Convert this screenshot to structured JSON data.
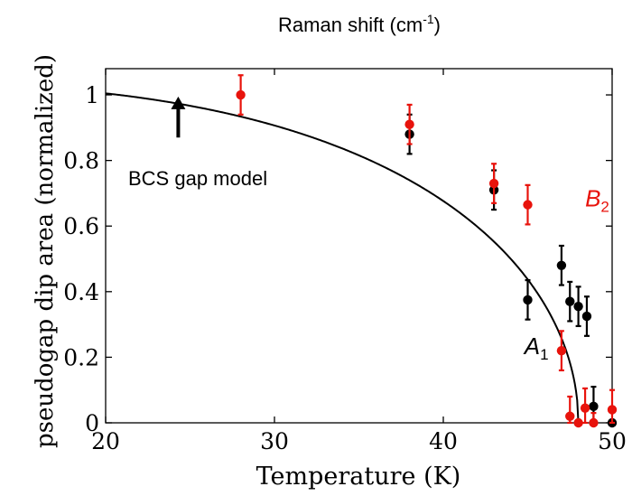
{
  "chart_data": {
    "type": "scatter",
    "title": "Raman shift (cm",
    "title_sup": "-1",
    "title_close": ")",
    "xlabel": "Temperature (K)",
    "ylabel": "pseudogap dip area (normalized)",
    "xlim": [
      20,
      50
    ],
    "ylim": [
      0,
      1.08
    ],
    "x_ticks": [
      20,
      30,
      40,
      50
    ],
    "x_tick_labels": [
      "20",
      "30",
      "40",
      "50"
    ],
    "y_ticks": [
      0,
      0.2,
      0.4,
      0.6,
      0.8,
      1
    ],
    "y_tick_labels": [
      "0",
      "0.2",
      "0.4",
      "0.6",
      "0.8",
      "1"
    ],
    "grid": false,
    "series": [
      {
        "name": "A",
        "name_sub": "1",
        "color": "#000000",
        "points": [
          {
            "x": 38,
            "y": 0.88,
            "err": 0.06
          },
          {
            "x": 43,
            "y": 0.71,
            "err": 0.06
          },
          {
            "x": 45,
            "y": 0.375,
            "err": 0.06
          },
          {
            "x": 47,
            "y": 0.48,
            "err": 0.06
          },
          {
            "x": 47.5,
            "y": 0.37,
            "err": 0.06
          },
          {
            "x": 48,
            "y": 0.355,
            "err": 0.06
          },
          {
            "x": 48.5,
            "y": 0.325,
            "err": 0.06
          },
          {
            "x": 48.9,
            "y": 0.05,
            "err": 0.06
          },
          {
            "x": 50,
            "y": 0.0,
            "err": 0.0
          }
        ]
      },
      {
        "name": "B",
        "name_sub": "2",
        "color": "#e8130c",
        "points": [
          {
            "x": 28,
            "y": 1.0,
            "err": 0.06
          },
          {
            "x": 38,
            "y": 0.91,
            "err": 0.06
          },
          {
            "x": 43,
            "y": 0.73,
            "err": 0.06
          },
          {
            "x": 45,
            "y": 0.665,
            "err": 0.06
          },
          {
            "x": 47,
            "y": 0.22,
            "err": 0.06
          },
          {
            "x": 47.5,
            "y": 0.02,
            "err": 0.06
          },
          {
            "x": 48,
            "y": 0.0,
            "err": 0.0
          },
          {
            "x": 48.4,
            "y": 0.045,
            "err": 0.06
          },
          {
            "x": 48.9,
            "y": 0.0,
            "err": 0.03
          },
          {
            "x": 50,
            "y": 0.04,
            "err": 0.06
          }
        ]
      }
    ],
    "model_curve": {
      "name": "BCS gap model",
      "color": "#000000",
      "Tc": 48,
      "delta0": 1.038
    },
    "annotations": {
      "model_label": "BCS gap model",
      "arrow_at": {
        "x": 24.3,
        "y_from": 0.87,
        "y_to": 0.995
      }
    },
    "series_label_positions": [
      {
        "series": "A",
        "x": 44.8,
        "y": 0.21
      },
      {
        "series": "B",
        "x": 48.4,
        "y": 0.66
      }
    ]
  }
}
